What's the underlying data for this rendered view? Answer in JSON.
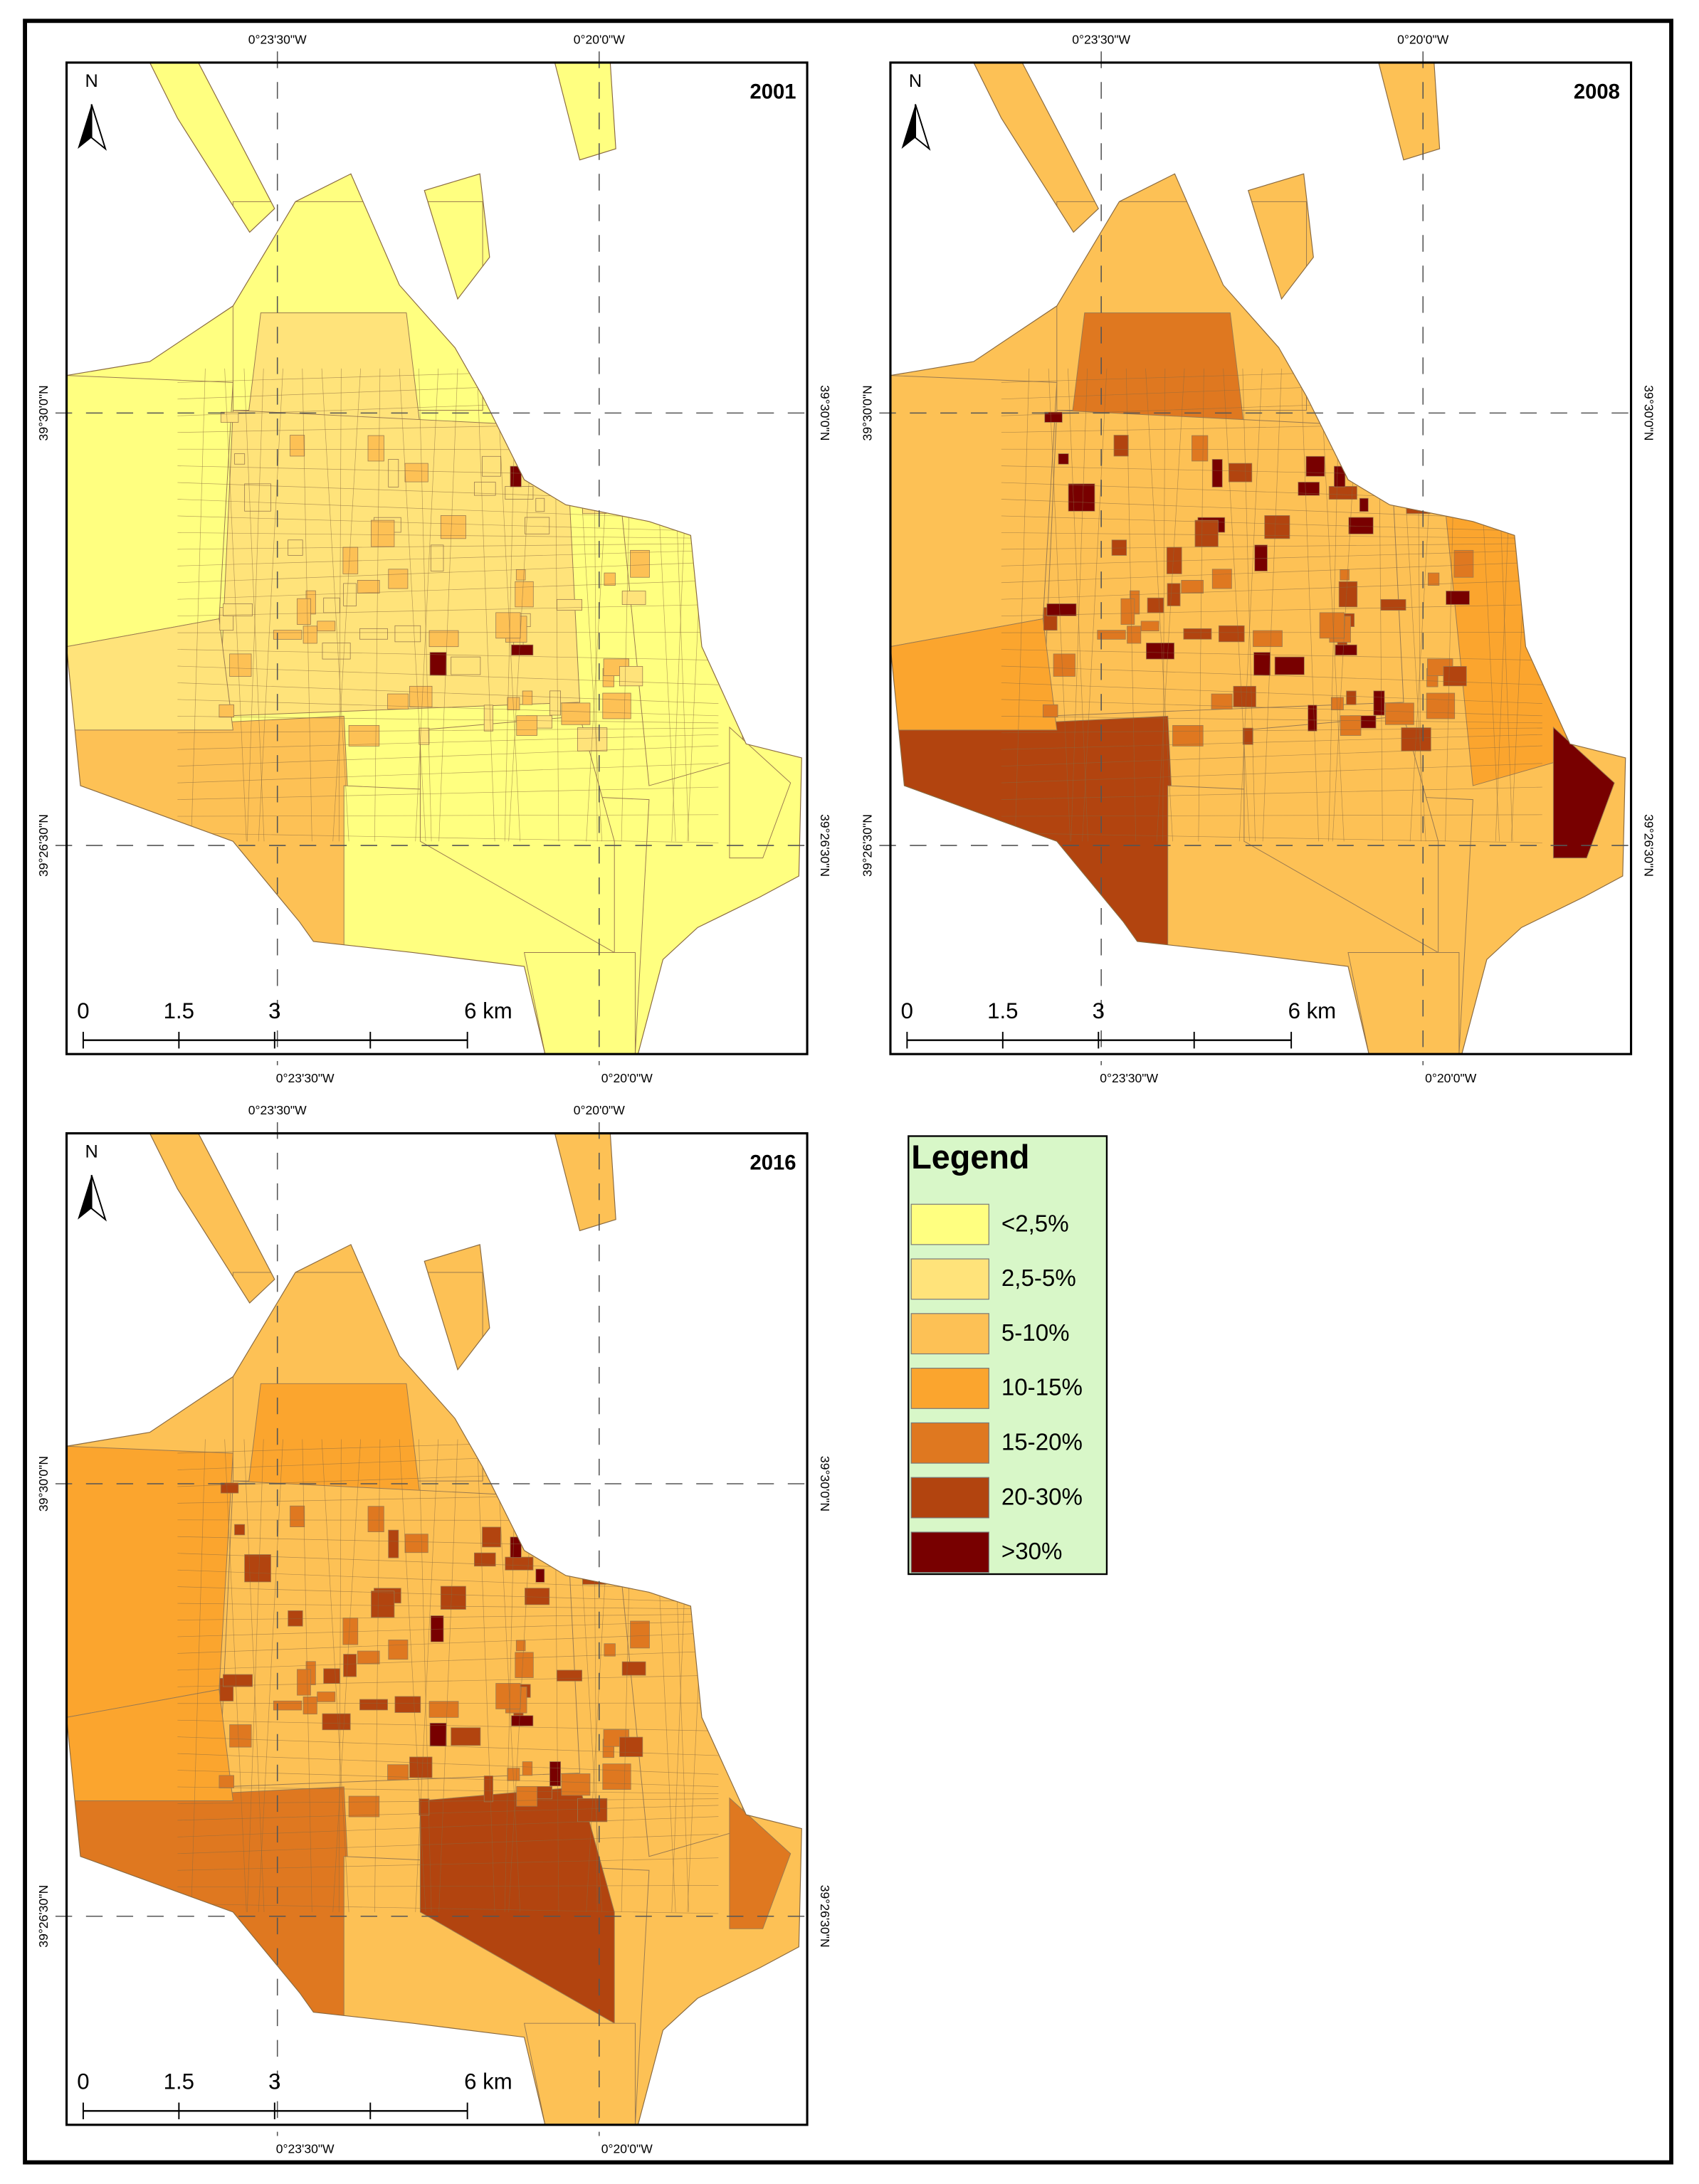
{
  "north": "N",
  "maps": [
    {
      "year": "2001",
      "top_labels": [
        "0°23'30\"W",
        "0°20'0\"W"
      ],
      "bottom_labels": [
        "0°23'30\"W",
        "0°20'0\"W"
      ],
      "left_labels": [
        "39°30'0\"N",
        "39°26'30\"N"
      ],
      "right_labels": [
        "39°30'0\"N",
        "39°26'30\"N"
      ],
      "scale_labels": [
        "0",
        "1.5",
        "3",
        "6 km"
      ]
    },
    {
      "year": "2008",
      "top_labels": [
        "0°23'30\"W",
        "0°20'0\"W"
      ],
      "bottom_labels": [
        "0°23'30\"W",
        "0°20'0\"W"
      ],
      "left_labels": [
        "39°30'0\"N",
        "39°26'30\"N"
      ],
      "right_labels": [
        "39°30'0\"N",
        "39°26'30\"N"
      ],
      "scale_labels": [
        "0",
        "1.5",
        "3",
        "6 km"
      ]
    },
    {
      "year": "2016",
      "top_labels": [
        "0°23'30\"W",
        "0°20'0\"W"
      ],
      "bottom_labels": [
        "0°23'30\"W",
        "0°20'0\"W"
      ],
      "left_labels": [
        "39°30'0\"N",
        "39°26'30\"N"
      ],
      "right_labels": [
        "39°30'0\"N",
        "39°26'30\"N"
      ],
      "scale_labels": [
        "0",
        "1.5",
        "3",
        "6 km"
      ]
    }
  ],
  "legend": {
    "title": "Legend",
    "items": [
      {
        "label": "<2,5%",
        "color": "#ffff80"
      },
      {
        "label": "2,5-5%",
        "color": "#ffe37a"
      },
      {
        "label": "5-10%",
        "color": "#fdc155"
      },
      {
        "label": "10-15%",
        "color": "#fba52e"
      },
      {
        "label": "15-20%",
        "color": "#df7820"
      },
      {
        "label": "20-30%",
        "color": "#b2440f"
      },
      {
        "label": ">30%",
        "color": "#780000"
      }
    ]
  }
}
